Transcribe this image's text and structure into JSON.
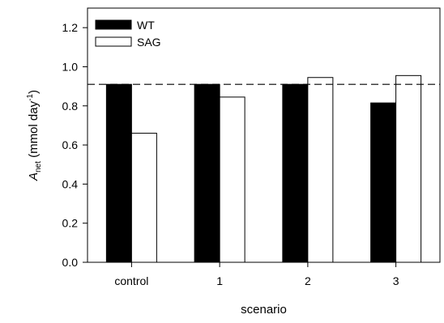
{
  "chart_data": {
    "type": "bar",
    "title": "",
    "xlabel": "scenario",
    "ylabel": {
      "main": "A",
      "sub": "net",
      "units_prefix": " (mmol day",
      "units_sup": "-1",
      "units_suffix": ")"
    },
    "categories": [
      "control",
      "1",
      "2",
      "3"
    ],
    "series": [
      {
        "name": "WT",
        "values": [
          0.91,
          0.91,
          0.91,
          0.815
        ],
        "fill": "#000000"
      },
      {
        "name": "SAG",
        "values": [
          0.66,
          0.845,
          0.945,
          0.955
        ],
        "fill": "#ffffff"
      }
    ],
    "ylim": [
      0,
      1.3
    ],
    "yticks": [
      "0.0",
      "0.2",
      "0.4",
      "0.6",
      "0.8",
      "1.0",
      "1.2"
    ],
    "ytick_values": [
      0,
      0.2,
      0.4,
      0.6,
      0.8,
      1.0,
      1.2
    ],
    "reference_line": {
      "value": 0.91,
      "style": "dashed"
    },
    "grid": false,
    "legend_position": "top-left"
  }
}
